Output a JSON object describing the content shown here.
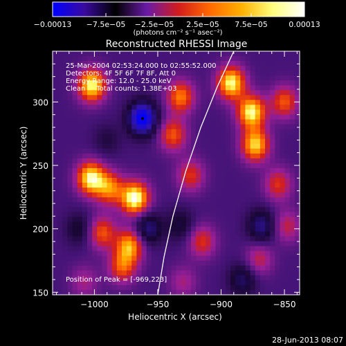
{
  "colorbar": {
    "tick_labels": [
      "−0.00013",
      "−7.5e−05",
      "−2.5e−05",
      "2.5e−05",
      "7.5e−05",
      "0.00013"
    ],
    "tick_values": [
      -0.00013,
      -7.5e-05,
      -2.5e-05,
      2.5e-05,
      7.5e-05,
      0.00013
    ],
    "range": [
      -0.00013,
      0.00013
    ],
    "units_label": "(photons cm⁻² s⁻¹ asec⁻²)",
    "colors": [
      "#0000ff",
      "#3a0aa0",
      "#000000",
      "#6a1aa8",
      "#d21c1c",
      "#ff6a00",
      "#ffb000",
      "#ffff80",
      "#ffffff"
    ]
  },
  "chart_data": {
    "type": "heatmap",
    "title": "Reconstructed RHESSI Image",
    "xlabel": "Heliocentric X (arcsec)",
    "ylabel": "Heliocentric Y (arcsec)",
    "xlim": [
      -1033,
      -838
    ],
    "ylim": [
      148,
      340
    ],
    "xticks": [
      -1000,
      -950,
      -900,
      -850
    ],
    "xtick_labels": [
      "−1000",
      "−950",
      "−900",
      "−850"
    ],
    "yticks": [
      150,
      200,
      250,
      300
    ],
    "ytick_labels": [
      "150",
      "200",
      "250",
      "300"
    ],
    "info_lines": [
      "25-Mar-2004 02:53:24.000 to 02:55:52.000",
      "Detectors: 4F 5F 6F 7F 8F, Att 0",
      "Energy Range: 12.0 - 25.0 keV",
      "Clean     Total counts: 1.38E+03"
    ],
    "peak_label": "Position of Peak = [-969,223]",
    "peak": [
      -969,
      223
    ],
    "limb_line": [
      [
        -950,
        148
      ],
      [
        -945,
        178
      ],
      [
        -938,
        210
      ],
      [
        -928,
        245
      ],
      [
        -916,
        280
      ],
      [
        -903,
        312
      ],
      [
        -890,
        340
      ]
    ],
    "hot_spots": [
      [
        -1002,
        313,
        1.0
      ],
      [
        -1003,
        240,
        1.0
      ],
      [
        -988,
        232,
        0.7
      ],
      [
        -968,
        224,
        1.1
      ],
      [
        -994,
        197,
        0.6
      ],
      [
        -972,
        187,
        0.8
      ],
      [
        -978,
        170,
        0.6
      ],
      [
        -932,
        304,
        0.7
      ],
      [
        -938,
        274,
        0.6
      ],
      [
        -924,
        242,
        0.5
      ],
      [
        -892,
        315,
        1.0
      ],
      [
        -876,
        292,
        1.0
      ],
      [
        -873,
        266,
        0.9
      ],
      [
        -850,
        300,
        0.6
      ],
      [
        -855,
        235,
        0.5
      ],
      [
        -915,
        190,
        0.5
      ],
      [
        -848,
        202,
        0.4
      ],
      [
        -870,
        176,
        0.4
      ],
      [
        -930,
        158,
        0.3
      ],
      [
        -1008,
        158,
        0.3
      ]
    ],
    "cold_spots": [
      [
        -962,
        287,
        -1.0
      ],
      [
        -958,
        200,
        -0.5
      ],
      [
        -868,
        202,
        -0.5
      ],
      [
        -1012,
        200,
        -0.3
      ],
      [
        -932,
        203,
        -0.3
      ],
      [
        -883,
        160,
        -0.4
      ],
      [
        -990,
        270,
        -0.2
      ]
    ]
  },
  "footer": {
    "timestamp": "28-Jun-2013 08:07"
  }
}
